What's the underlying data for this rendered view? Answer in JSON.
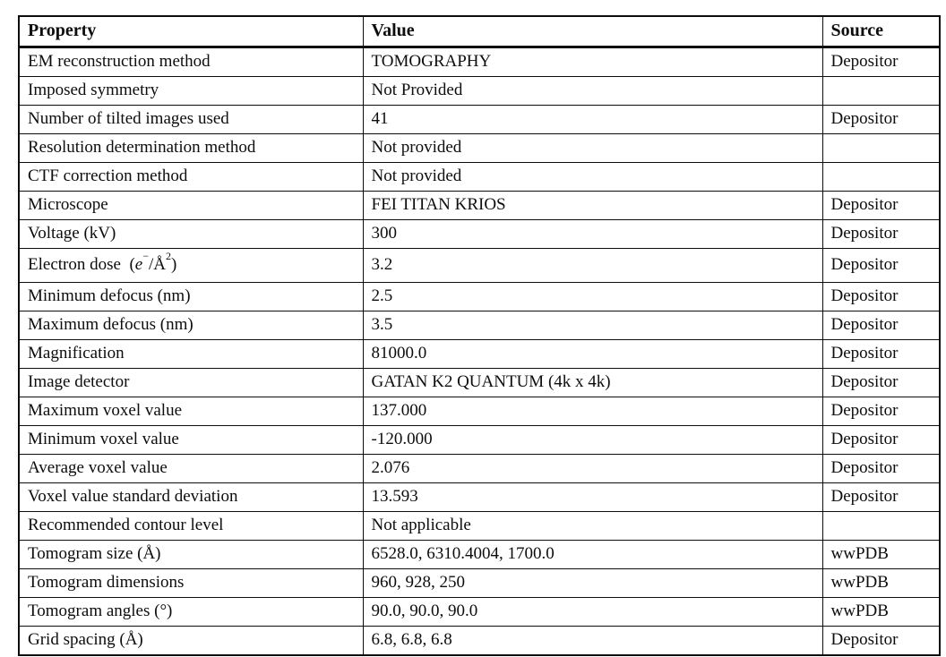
{
  "table": {
    "headers": [
      "Property",
      "Value",
      "Source"
    ],
    "electron_dose_math": [
      {
        "t": " ("
      },
      {
        "t": "e",
        "s": "it"
      },
      {
        "t": "−",
        "s": "sup"
      },
      {
        "t": "/"
      },
      {
        "t": "Å"
      },
      {
        "t": "2",
        "s": "sup"
      },
      {
        "t": ")"
      }
    ],
    "rows": [
      {
        "property": "EM reconstruction method",
        "value": "TOMOGRAPHY",
        "source": "Depositor"
      },
      {
        "property": "Imposed symmetry",
        "value": "Not Provided",
        "source": ""
      },
      {
        "property": "Number of tilted images used",
        "value": "41",
        "source": "Depositor"
      },
      {
        "property": "Resolution determination method",
        "value": "Not provided",
        "source": ""
      },
      {
        "property": "CTF correction method",
        "value": "Not provided",
        "source": ""
      },
      {
        "property": "Microscope",
        "value": "FEI TITAN KRIOS",
        "source": "Depositor"
      },
      {
        "property": "Voltage (kV)",
        "value": "300",
        "source": "Depositor"
      },
      {
        "property": "Electron dose ",
        "has_math": true,
        "value": "3.2",
        "source": "Depositor"
      },
      {
        "property": "Minimum defocus (nm)",
        "value": "2.5",
        "source": "Depositor"
      },
      {
        "property": "Maximum defocus (nm)",
        "value": "3.5",
        "source": "Depositor"
      },
      {
        "property": "Magnification",
        "value": "81000.0",
        "source": "Depositor"
      },
      {
        "property": "Image detector",
        "value": "GATAN K2 QUANTUM (4k x 4k)",
        "source": "Depositor"
      },
      {
        "property": "Maximum voxel value",
        "value": "137.000",
        "source": "Depositor"
      },
      {
        "property": "Minimum voxel value",
        "value": "-120.000",
        "source": "Depositor"
      },
      {
        "property": "Average voxel value",
        "value": "2.076",
        "source": "Depositor"
      },
      {
        "property": "Voxel value standard deviation",
        "value": "13.593",
        "source": "Depositor"
      },
      {
        "property": "Recommended contour level",
        "value": "Not applicable",
        "source": ""
      },
      {
        "property": "Tomogram size (Å)",
        "value": "6528.0, 6310.4004, 1700.0",
        "source": "wwPDB"
      },
      {
        "property": "Tomogram dimensions",
        "value": "960, 928, 250",
        "source": "wwPDB"
      },
      {
        "property": "Tomogram angles (°)",
        "value": "90.0, 90.0, 90.0",
        "source": "wwPDB"
      },
      {
        "property": "Grid spacing (Å)",
        "value": "6.8, 6.8, 6.8",
        "source": "Depositor"
      }
    ]
  }
}
